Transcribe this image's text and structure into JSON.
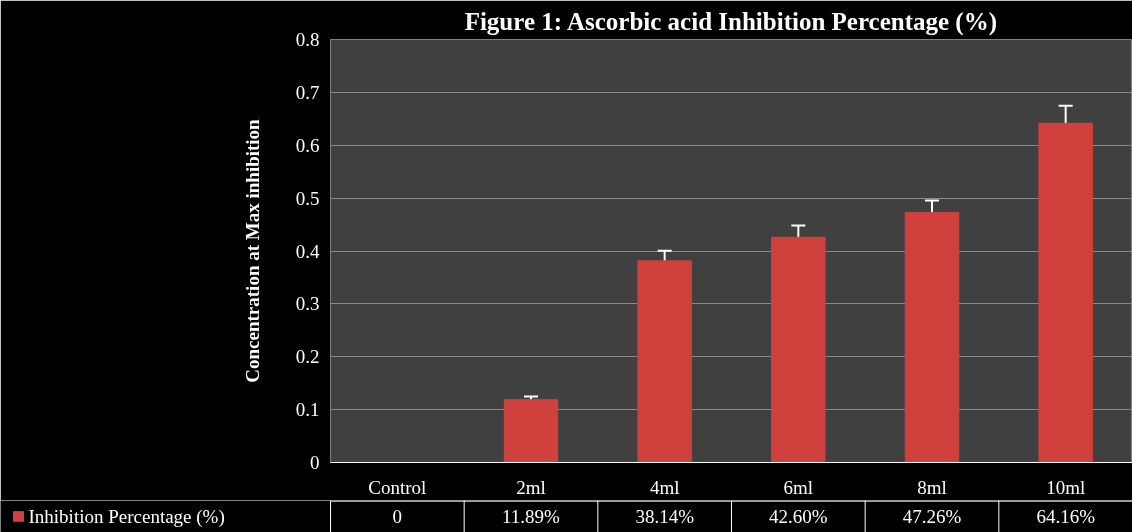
{
  "chart_data": {
    "type": "bar",
    "title": "Figure 1: Ascorbic acid Inhibition Percentage (%)",
    "ylabel": "Concentration at Max inhibition",
    "categories": [
      "Control",
      "2ml",
      "4ml",
      "6ml",
      "8ml",
      "10ml"
    ],
    "series": [
      {
        "name": "Inhibition Percentage (%)",
        "color": "#d0403c",
        "values": [
          0,
          0.1189,
          0.3814,
          0.426,
          0.4726,
          0.6416
        ],
        "errors": [
          null,
          0.006,
          0.019,
          0.022,
          0.023,
          0.033
        ],
        "value_labels": [
          "0",
          "11.89%",
          "38.14%",
          "42.60%",
          "47.26%",
          "64.16%"
        ]
      }
    ],
    "ylim": [
      0,
      0.8
    ],
    "yticks": [
      0,
      0.1,
      0.2,
      0.3,
      0.4,
      0.5,
      0.6,
      0.7,
      0.8
    ],
    "grid": "y",
    "legend": "bottom left"
  }
}
